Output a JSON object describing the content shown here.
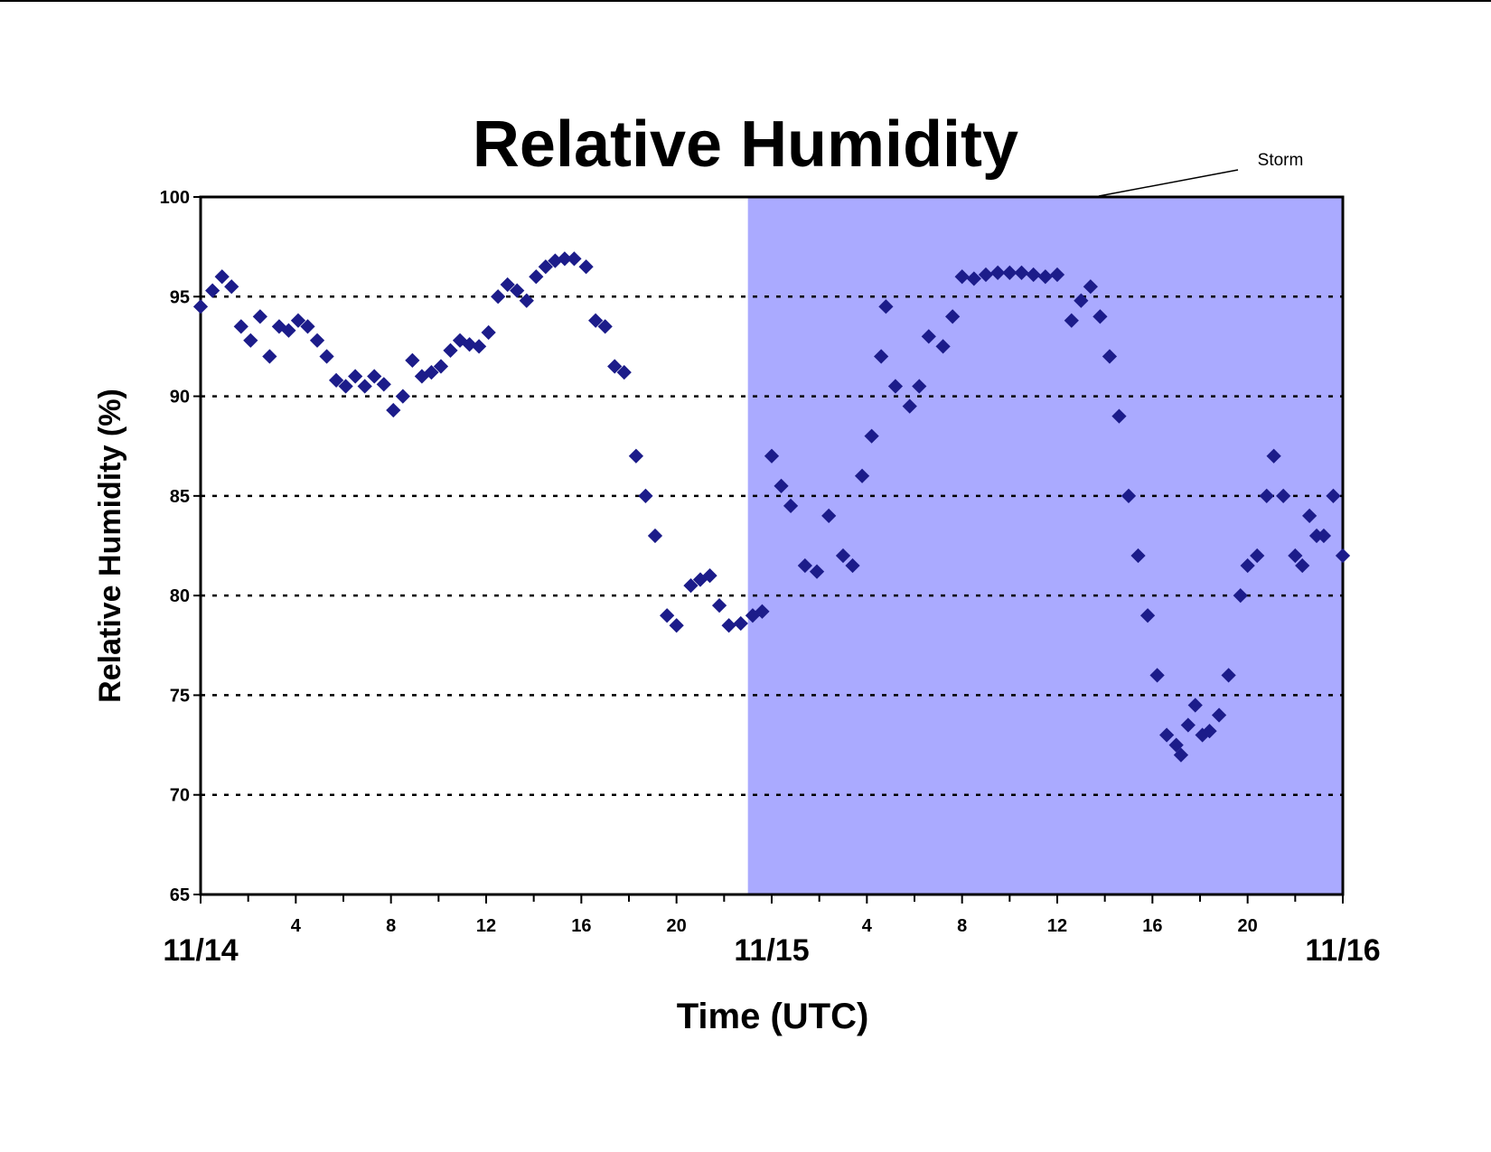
{
  "chart_data": {
    "type": "scatter",
    "title": "Relative Humidity",
    "x_label": "Time (UTC)",
    "y_label": "Relative Humidity (%)",
    "annotation": "Storm",
    "storm_span": [
      23,
      48
    ],
    "storm_color": "#aaaaff",
    "grid": true,
    "xlim": [
      0,
      48
    ],
    "ylim": [
      65,
      100
    ],
    "yticks": [
      65,
      70,
      75,
      80,
      85,
      90,
      95,
      100
    ],
    "xticks": [
      {
        "value": 0,
        "label": "11/14"
      },
      4,
      8,
      12,
      16,
      20,
      {
        "value": 24,
        "label": "11/15"
      },
      {
        "value": 28,
        "label": "4"
      },
      {
        "value": 32,
        "label": "8"
      },
      {
        "value": 36,
        "label": "12"
      },
      {
        "value": 40,
        "label": "16"
      },
      {
        "value": 44,
        "label": "20"
      },
      {
        "value": 48,
        "label": "11/16"
      }
    ],
    "series": [
      {
        "name": "Relative Humidity",
        "color": "#1c1c8a",
        "x": [
          0,
          0.5,
          0.9,
          1.3,
          1.7,
          2.1,
          2.5,
          2.9,
          3.3,
          3.7,
          4.1,
          4.5,
          4.9,
          5.3,
          5.7,
          6.1,
          6.5,
          6.9,
          7.3,
          7.7,
          8.1,
          8.5,
          8.9,
          9.3,
          9.7,
          10.1,
          10.5,
          10.9,
          11.3,
          11.7,
          12.1,
          12.5,
          12.9,
          13.3,
          13.7,
          14.1,
          14.5,
          14.9,
          15.3,
          15.7,
          16.2,
          16.6,
          17.0,
          17.4,
          17.8,
          18.3,
          18.7,
          19.1,
          19.6,
          20.0,
          20.6,
          21.0,
          21.4,
          21.8,
          22.2,
          22.7,
          23.2,
          23.6,
          24.0,
          24.4,
          24.8,
          25.4,
          25.9,
          26.4,
          27.0,
          27.4,
          27.8,
          28.2,
          28.6,
          28.8,
          29.2,
          29.8,
          30.2,
          30.6,
          31.2,
          31.6,
          32.0,
          32.5,
          33.0,
          33.5,
          34.0,
          34.5,
          35.0,
          35.5,
          36.0,
          36.6,
          37.0,
          37.4,
          37.8,
          38.2,
          38.6,
          39.0,
          39.4,
          39.8,
          40.2,
          40.6,
          41.0,
          41.2,
          41.5,
          41.8,
          42.1,
          42.4,
          42.8,
          43.2,
          43.7,
          44.0,
          44.4,
          44.8,
          45.1,
          45.5,
          46.0,
          46.3,
          46.6,
          46.9,
          47.2,
          47.6,
          48.0
        ],
        "values": [
          94.5,
          95.3,
          96,
          95.5,
          93.5,
          92.8,
          94,
          92,
          93.5,
          93.3,
          93.8,
          93.5,
          92.8,
          92,
          90.8,
          90.5,
          91,
          90.5,
          91,
          90.6,
          89.3,
          90,
          91.8,
          91,
          91.2,
          91.5,
          92.3,
          92.8,
          92.6,
          92.5,
          93.2,
          95,
          95.6,
          95.3,
          94.8,
          96,
          96.5,
          96.8,
          96.9,
          96.9,
          96.5,
          93.8,
          93.5,
          91.5,
          91.2,
          87,
          85,
          83,
          79,
          78.5,
          80.5,
          80.8,
          81,
          79.5,
          78.5,
          78.6,
          79,
          79.2,
          87,
          85.5,
          84.5,
          81.5,
          81.2,
          84,
          82,
          81.5,
          86,
          88,
          92,
          94.5,
          90.5,
          89.5,
          90.5,
          93,
          92.5,
          94,
          96,
          95.9,
          96.1,
          96.2,
          96.2,
          96.2,
          96.1,
          96.0,
          96.1,
          93.8,
          94.8,
          95.5,
          94,
          92,
          89,
          85,
          82,
          79,
          76,
          73,
          72.5,
          72,
          73.5,
          74.5,
          73,
          73.2,
          74,
          76,
          80,
          81.5,
          82,
          85,
          87,
          85,
          82,
          81.5,
          84,
          83,
          83,
          85,
          82
        ]
      }
    ]
  }
}
